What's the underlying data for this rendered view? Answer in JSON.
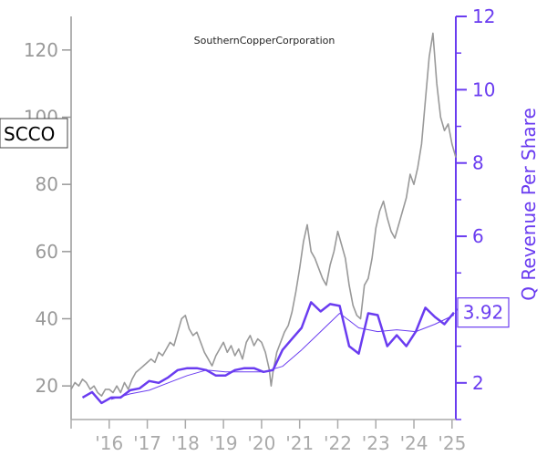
{
  "chart_data": {
    "type": "line",
    "title": "SouthernCopperCorporation",
    "ticker": "SCCO",
    "x_tick_labels": [
      "'16",
      "'17",
      "'18",
      "'19",
      "'20",
      "'21",
      "'22",
      "'23",
      "'24",
      "'25"
    ],
    "x_range": [
      2015.0,
      2025.1
    ],
    "left_axis": {
      "ylim": [
        10,
        130
      ],
      "ticks": [
        20,
        40,
        60,
        80,
        100,
        120
      ],
      "color": "#999999"
    },
    "right_axis": {
      "ylabel": "Q Revenue Per Share",
      "ylim": [
        1,
        12
      ],
      "ticks": [
        2,
        4,
        6,
        8,
        10,
        12
      ],
      "color": "#6a3cf0"
    },
    "last_value_label": "3.92",
    "series": [
      {
        "axis": "left",
        "color": "#999999",
        "x": [
          2015.0,
          2015.1,
          2015.2,
          2015.3,
          2015.4,
          2015.5,
          2015.6,
          2015.7,
          2015.8,
          2015.9,
          2016.0,
          2016.1,
          2016.2,
          2016.3,
          2016.4,
          2016.5,
          2016.6,
          2016.7,
          2016.8,
          2016.9,
          2017.0,
          2017.1,
          2017.2,
          2017.3,
          2017.4,
          2017.5,
          2017.6,
          2017.7,
          2017.8,
          2017.9,
          2018.0,
          2018.1,
          2018.2,
          2018.3,
          2018.4,
          2018.5,
          2018.6,
          2018.7,
          2018.8,
          2018.9,
          2019.0,
          2019.1,
          2019.2,
          2019.3,
          2019.4,
          2019.5,
          2019.6,
          2019.7,
          2019.8,
          2019.9,
          2020.0,
          2020.1,
          2020.2,
          2020.25,
          2020.3,
          2020.4,
          2020.5,
          2020.6,
          2020.7,
          2020.8,
          2020.9,
          2021.0,
          2021.1,
          2021.2,
          2021.3,
          2021.4,
          2021.5,
          2021.6,
          2021.7,
          2021.8,
          2021.9,
          2022.0,
          2022.1,
          2022.2,
          2022.3,
          2022.4,
          2022.5,
          2022.6,
          2022.7,
          2022.8,
          2022.9,
          2023.0,
          2023.1,
          2023.2,
          2023.3,
          2023.4,
          2023.5,
          2023.6,
          2023.7,
          2023.8,
          2023.9,
          2024.0,
          2024.1,
          2024.2,
          2024.3,
          2024.4,
          2024.5,
          2024.6,
          2024.7,
          2024.8,
          2024.9,
          2025.0,
          2025.1
        ],
        "values": [
          19,
          21,
          20,
          22,
          21,
          19,
          20,
          18,
          17,
          19,
          19,
          18,
          20,
          18,
          21,
          19,
          22,
          24,
          25,
          26,
          27,
          28,
          27,
          30,
          29,
          31,
          33,
          32,
          36,
          40,
          41,
          37,
          35,
          36,
          33,
          30,
          28,
          26,
          29,
          31,
          33,
          30,
          32,
          29,
          31,
          28,
          33,
          35,
          32,
          34,
          33,
          30,
          25,
          20,
          24,
          30,
          33,
          36,
          38,
          42,
          48,
          55,
          63,
          68,
          60,
          58,
          55,
          52,
          50,
          56,
          60,
          66,
          62,
          58,
          50,
          44,
          41,
          40,
          50,
          52,
          58,
          67,
          72,
          75,
          70,
          66,
          64,
          68,
          72,
          76,
          83,
          80,
          85,
          92,
          105,
          118,
          125,
          110,
          100,
          96,
          98,
          92,
          88
        ]
      },
      {
        "axis": "right",
        "color": "#6a3cf0",
        "stroke_width": 2.5,
        "x": [
          2015.3,
          2015.55,
          2015.8,
          2016.05,
          2016.3,
          2016.55,
          2016.8,
          2017.05,
          2017.3,
          2017.55,
          2017.8,
          2018.05,
          2018.3,
          2018.55,
          2018.8,
          2019.05,
          2019.3,
          2019.55,
          2019.8,
          2020.05,
          2020.3,
          2020.55,
          2020.8,
          2021.05,
          2021.3,
          2021.55,
          2021.8,
          2022.05,
          2022.3,
          2022.55,
          2022.8,
          2023.05,
          2023.3,
          2023.55,
          2023.8,
          2024.05,
          2024.3,
          2024.55,
          2024.8,
          2025.05
        ],
        "values": [
          1.6,
          1.75,
          1.45,
          1.6,
          1.6,
          1.8,
          1.85,
          2.05,
          2.0,
          2.15,
          2.35,
          2.4,
          2.4,
          2.35,
          2.2,
          2.2,
          2.35,
          2.4,
          2.4,
          2.3,
          2.35,
          2.9,
          3.2,
          3.5,
          4.2,
          3.95,
          4.15,
          4.1,
          3.0,
          2.8,
          3.9,
          3.85,
          3.0,
          3.3,
          3.0,
          3.4,
          4.05,
          3.8,
          3.6,
          3.92
        ]
      },
      {
        "axis": "right",
        "color": "#6a3cf0",
        "stroke_width": 1.0,
        "x": [
          2016.05,
          2016.55,
          2017.05,
          2017.55,
          2018.05,
          2018.55,
          2019.05,
          2019.55,
          2020.05,
          2020.55,
          2021.05,
          2021.55,
          2022.05,
          2022.55,
          2023.05,
          2023.55,
          2024.05,
          2024.55,
          2025.05
        ],
        "values": [
          1.55,
          1.7,
          1.8,
          2.0,
          2.2,
          2.35,
          2.3,
          2.3,
          2.3,
          2.45,
          2.9,
          3.4,
          3.9,
          3.5,
          3.4,
          3.45,
          3.4,
          3.6,
          3.85
        ]
      }
    ]
  }
}
